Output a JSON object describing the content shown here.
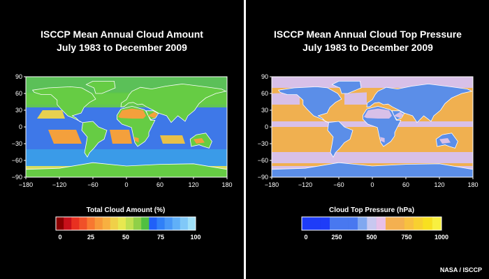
{
  "maps": [
    {
      "title_line1": "ISCCP Mean Annual Cloud Amount",
      "title_line2": "July 1983 to December 2009",
      "colorbar_title": "Total Cloud Amount (%)",
      "colorbar_ticks": [
        "0",
        "25",
        "50",
        "75",
        "100"
      ],
      "colorbar_colors": [
        "#8b0000",
        "#c8101a",
        "#e83020",
        "#f05028",
        "#f87830",
        "#f89838",
        "#f8b040",
        "#f0d048",
        "#e8e850",
        "#c0e050",
        "#90d048",
        "#50c040",
        "#2060f8",
        "#3080f8",
        "#4898f8",
        "#60b0f8",
        "#80c8f8",
        "#a0e0f8"
      ],
      "lat_ticks": [
        "90",
        "60",
        "30",
        "0",
        "−30",
        "−60",
        "−90"
      ],
      "lon_ticks": [
        "−180",
        "−120",
        "−60",
        "0",
        "60",
        "120",
        "180"
      ],
      "ocean_color": "#3e78e8",
      "land_color": "#66cc44",
      "desert_color": "#f4a03c"
    },
    {
      "title_line1": "ISCCP Mean Annual Cloud Top Pressure",
      "title_line2": "July 1983 to December 2009",
      "colorbar_title": "Cloud Top Pressure (hPa)",
      "colorbar_ticks": [
        "0",
        "250",
        "500",
        "750",
        "1000"
      ],
      "colorbar_colors": [
        "#1e3cf8",
        "#1e3cf8",
        "#1e3cf8",
        "#4878f0",
        "#4878f0",
        "#4878f0",
        "#80a8f0",
        "#c8c8f0",
        "#e8c0e8",
        "#f4b050",
        "#f4b050",
        "#f8c040",
        "#f8d030",
        "#f8e020",
        "#f8f040"
      ],
      "lat_ticks": [
        "90",
        "60",
        "30",
        "0",
        "−30",
        "−60",
        "−90"
      ],
      "lon_ticks": [
        "−180",
        "−120",
        "−60",
        "0",
        "60",
        "120",
        "180"
      ],
      "ocean_color": "#f0b050",
      "land_color": "#5b8ee8",
      "desert_color": "#d8c0e8"
    }
  ],
  "credit": "NASA / ISCCP"
}
